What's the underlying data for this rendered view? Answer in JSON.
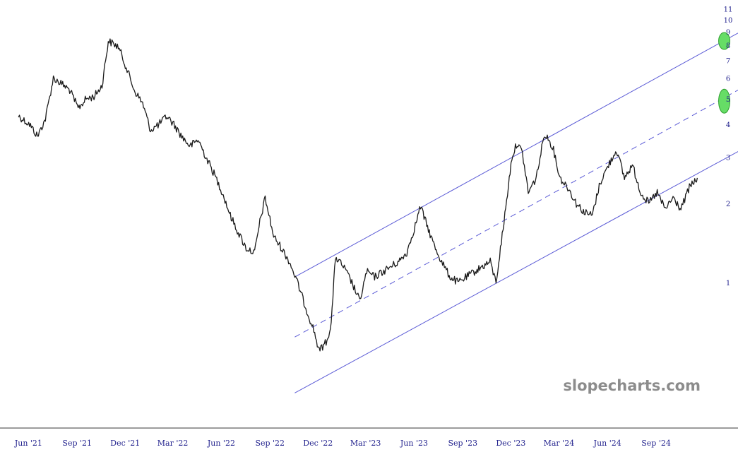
{
  "watermark": "slopecharts.com",
  "colors": {
    "price": "#1a1a1a",
    "channel": "#5b5bd6",
    "target_fill": "#66dd66",
    "target_stroke": "#2f9e2f",
    "axis_text": "#23238e"
  },
  "chart_data": {
    "type": "line",
    "title": "",
    "xlabel": "",
    "ylabel": "",
    "y_scale": "log",
    "grid": false,
    "x_ticks": [
      "Jun '21",
      "Sep '21",
      "Dec '21",
      "Mar '22",
      "Jun '22",
      "Sep '22",
      "Dec '22",
      "Mar '23",
      "Jun '23",
      "Sep '23",
      "Dec '23",
      "Mar '24",
      "Jun '24",
      "Sep '24"
    ],
    "y_ticks": [
      "1",
      "2",
      "3",
      "4",
      "5",
      "6",
      "7",
      "8",
      "9",
      "10",
      "11"
    ],
    "x_range": [
      "2021-04-10",
      "2025-02-05"
    ],
    "y_range": [
      0.5,
      11
    ],
    "series": [
      {
        "kind": "price",
        "x": [
          "2021-05-15",
          "2021-06-05",
          "2021-06-20",
          "2021-07-05",
          "2021-07-20",
          "2021-08-05",
          "2021-08-20",
          "2021-09-05",
          "2021-09-20",
          "2021-10-05",
          "2021-10-20",
          "2021-11-01",
          "2021-11-20",
          "2021-12-05",
          "2021-12-20",
          "2022-01-05",
          "2022-01-20",
          "2022-02-05",
          "2022-02-20",
          "2022-03-05",
          "2022-03-20",
          "2022-04-05",
          "2022-04-20",
          "2022-05-05",
          "2022-05-20",
          "2022-06-05",
          "2022-06-20",
          "2022-07-05",
          "2022-07-20",
          "2022-08-05",
          "2022-08-15",
          "2022-08-25",
          "2022-09-10",
          "2022-09-25",
          "2022-10-10",
          "2022-10-25",
          "2022-11-10",
          "2022-11-25",
          "2022-12-05",
          "2022-12-20",
          "2022-12-28",
          "2023-01-05",
          "2023-01-20",
          "2023-02-05",
          "2023-02-20",
          "2023-03-05",
          "2023-03-20",
          "2023-04-05",
          "2023-04-20",
          "2023-05-05",
          "2023-05-20",
          "2023-06-05",
          "2023-06-15",
          "2023-06-25",
          "2023-07-10",
          "2023-07-25",
          "2023-08-10",
          "2023-08-25",
          "2023-09-10",
          "2023-09-25",
          "2023-10-10",
          "2023-10-25",
          "2023-11-05",
          "2023-11-20",
          "2023-12-05",
          "2023-12-15",
          "2023-12-25",
          "2024-01-05",
          "2024-01-20",
          "2024-02-05",
          "2024-02-20",
          "2024-03-05",
          "2024-03-20",
          "2024-04-05",
          "2024-04-20",
          "2024-05-05",
          "2024-05-20",
          "2024-06-05",
          "2024-06-20",
          "2024-07-05",
          "2024-07-20",
          "2024-08-05",
          "2024-08-20",
          "2024-09-05",
          "2024-09-20",
          "2024-10-05",
          "2024-10-20",
          "2024-11-05",
          "2024-11-20"
        ],
        "y": [
          4.3,
          4.0,
          3.6,
          4.2,
          6.0,
          5.7,
          5.4,
          4.6,
          5.0,
          5.1,
          5.6,
          8.3,
          7.9,
          6.6,
          5.4,
          4.8,
          3.8,
          4.0,
          4.3,
          4.0,
          3.6,
          3.3,
          3.5,
          3.0,
          2.6,
          2.2,
          1.8,
          1.55,
          1.35,
          1.3,
          1.7,
          2.1,
          1.5,
          1.35,
          1.2,
          1.0,
          0.8,
          0.66,
          0.55,
          0.6,
          0.7,
          1.25,
          1.15,
          1.0,
          0.85,
          1.1,
          1.05,
          1.1,
          1.15,
          1.2,
          1.3,
          1.65,
          1.95,
          1.7,
          1.4,
          1.2,
          1.05,
          1.0,
          1.05,
          1.1,
          1.15,
          1.2,
          1.0,
          1.7,
          3.0,
          3.4,
          3.1,
          2.2,
          2.5,
          3.7,
          3.3,
          2.5,
          2.3,
          2.0,
          1.85,
          1.8,
          2.4,
          2.8,
          3.2,
          2.5,
          2.8,
          2.2,
          2.0,
          2.2,
          1.9,
          2.1,
          1.9,
          2.3,
          2.5
        ]
      }
    ],
    "channel": {
      "upper": {
        "x": [
          "2022-10-20",
          "2025-02-05"
        ],
        "y": [
          1.05,
          8.9
        ]
      },
      "middle": {
        "x": [
          "2022-10-20",
          "2025-02-05"
        ],
        "y": [
          0.62,
          5.4
        ]
      },
      "lower": {
        "x": [
          "2022-10-20",
          "2025-02-05"
        ],
        "y": [
          0.38,
          3.15
        ]
      }
    },
    "targets": [
      {
        "date": "2025-01-10",
        "value": 8.3
      },
      {
        "date": "2025-01-10",
        "value": 4.9
      }
    ]
  }
}
